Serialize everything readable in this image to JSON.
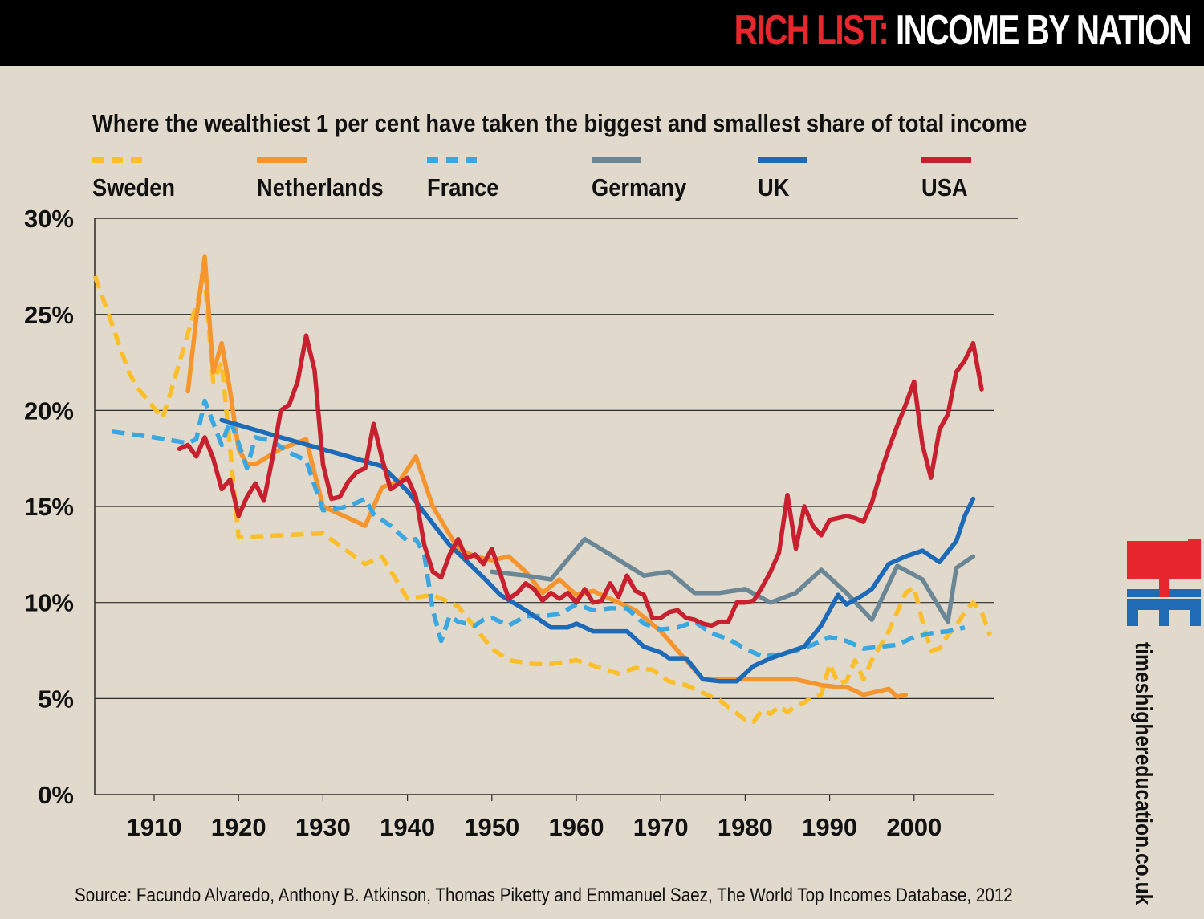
{
  "header": {
    "title_highlight": "RICH LIST:",
    "title_rest": " INCOME BY NATION",
    "highlight_color": "#e8262d"
  },
  "branding": {
    "logo_text": "THE",
    "logo_colors": [
      "#e8262d",
      "#1f6bb5"
    ],
    "site": "timeshighereducation.co.uk"
  },
  "source": "Source: Facundo Alvaredo, Anthony B. Atkinson, Thomas Piketty and Emmanuel Saez, The World Top Incomes Database, 2012",
  "chart_data": {
    "type": "line",
    "title": "Where the wealthiest 1 per cent have taken the biggest and smallest share of total income",
    "xlabel": "",
    "ylabel": "",
    "xlim": [
      1903,
      2009
    ],
    "ylim": [
      0,
      30
    ],
    "x_ticks": [
      "1910",
      "1920",
      "1930",
      "1940",
      "1950",
      "1960",
      "1970",
      "1980",
      "1990",
      "2000"
    ],
    "x_tick_values": [
      1910,
      1920,
      1930,
      1940,
      1950,
      1960,
      1970,
      1980,
      1990,
      2000
    ],
    "y_ticks": [
      "0%",
      "5%",
      "10%",
      "15%",
      "20%",
      "25%",
      "30%"
    ],
    "y_tick_values": [
      0,
      5,
      10,
      15,
      20,
      25,
      30
    ],
    "grid": "horizontal",
    "legend_position": "top",
    "series": [
      {
        "name": "Sweden",
        "color": "#fbbf2c",
        "dashed": true,
        "x": [
          1903,
          1907,
          1908,
          1911,
          1912,
          1915,
          1916,
          1917,
          1918,
          1919,
          1920,
          1925,
          1930,
          1935,
          1937,
          1940,
          1943,
          1945,
          1946,
          1950,
          1952,
          1955,
          1957,
          1960,
          1965,
          1967,
          1969,
          1971,
          1973,
          1975,
          1977,
          1980,
          1981,
          1982,
          1983,
          1984,
          1985,
          1986,
          1987,
          1988,
          1989,
          1990,
          1991,
          1992,
          1993,
          1994,
          1995,
          1997,
          1999,
          2000,
          2001,
          2002,
          2003,
          2004,
          2005,
          2006,
          2007,
          2008,
          2009
        ],
        "y": [
          27,
          22,
          21.2,
          19.6,
          21,
          25.5,
          27,
          21.5,
          22.5,
          18,
          13.4,
          13.5,
          13.6,
          12,
          12.4,
          10.2,
          10.4,
          10,
          9.8,
          7.6,
          7.0,
          6.8,
          6.8,
          7.0,
          6.3,
          6.6,
          6.5,
          5.9,
          5.7,
          5.3,
          4.9,
          3.9,
          3.8,
          4.4,
          4.2,
          4.6,
          4.3,
          4.6,
          4.8,
          5.1,
          5.2,
          6.8,
          5.8,
          5.9,
          7.0,
          6.0,
          7.0,
          8.5,
          10.5,
          10.8,
          9.0,
          7.5,
          7.6,
          8.3,
          8.8,
          9.5,
          10.0,
          9.5,
          8.3
        ]
      },
      {
        "name": "Netherlands",
        "color": "#f6952d",
        "dashed": false,
        "x": [
          1914,
          1915,
          1916,
          1917,
          1918,
          1919,
          1920,
          1921,
          1922,
          1925,
          1928,
          1930,
          1932,
          1935,
          1937,
          1939,
          1941,
          1943,
          1946,
          1948,
          1950,
          1952,
          1954,
          1956,
          1958,
          1960,
          1962,
          1965,
          1967,
          1970,
          1973,
          1975,
          1978,
          1980,
          1983,
          1986,
          1989,
          1991,
          1992,
          1993,
          1994,
          1996,
          1997,
          1998,
          1999
        ],
        "y": [
          21,
          24.8,
          28,
          22,
          23.5,
          21,
          18,
          17.2,
          17.2,
          18,
          18.5,
          15,
          14.6,
          14,
          16,
          16.3,
          17.6,
          15,
          12.8,
          12.4,
          12.2,
          12.4,
          11.6,
          10.5,
          11.2,
          10.4,
          10.6,
          10,
          9.6,
          8.5,
          7,
          6,
          6,
          6,
          6,
          6,
          5.7,
          5.6,
          5.6,
          5.4,
          5.2,
          5.4,
          5.5,
          5.1,
          5.2
        ]
      },
      {
        "name": "France",
        "color": "#3aa7e0",
        "dashed": true,
        "x": [
          1905,
          1910,
          1914,
          1915,
          1916,
          1918,
          1919,
          1920,
          1921,
          1922,
          1924,
          1926,
          1928,
          1930,
          1932,
          1934,
          1935,
          1936,
          1938,
          1940,
          1941,
          1942,
          1943,
          1944,
          1945,
          1946,
          1948,
          1949,
          1950,
          1952,
          1954,
          1956,
          1958,
          1960,
          1962,
          1964,
          1966,
          1968,
          1970,
          1972,
          1974,
          1976,
          1978,
          1980,
          1982,
          1984,
          1986,
          1988,
          1990,
          1992,
          1994,
          1996,
          1998,
          2000,
          2002,
          2004,
          2006
        ],
        "y": [
          18.9,
          18.6,
          18.3,
          18.5,
          20.5,
          18.2,
          19.5,
          18.3,
          17,
          18.6,
          18.4,
          17.8,
          17.4,
          14.8,
          14.9,
          15.2,
          15.4,
          14.6,
          14,
          13.2,
          13.3,
          12.5,
          9.6,
          8.0,
          9.3,
          9.0,
          8.8,
          9.1,
          9.2,
          8.8,
          9.3,
          9.3,
          9.4,
          9.9,
          9.6,
          9.7,
          9.7,
          8.9,
          8.6,
          8.7,
          9.0,
          8.4,
          8.1,
          7.6,
          7.2,
          7.3,
          7.5,
          7.8,
          8.2,
          8.0,
          7.6,
          7.7,
          7.8,
          8.2,
          8.4,
          8.5,
          8.7
        ]
      },
      {
        "name": "Germany",
        "color": "#6b8796",
        "dashed": false,
        "x": [
          1950,
          1954,
          1957,
          1961,
          1964,
          1968,
          1971,
          1974,
          1977,
          1980,
          1983,
          1986,
          1989,
          1992,
          1995,
          1998,
          2001,
          2004,
          2005,
          2007
        ],
        "y": [
          11.6,
          11.4,
          11.2,
          13.3,
          12.5,
          11.4,
          11.6,
          10.5,
          10.5,
          10.7,
          10.0,
          10.5,
          11.7,
          10.5,
          9.1,
          11.9,
          11.2,
          9.0,
          11.8,
          12.4
        ]
      },
      {
        "name": "UK",
        "color": "#1d6ab8",
        "dashed": false,
        "x": [
          1918,
          1925,
          1937,
          1940,
          1945,
          1949,
          1951,
          1954,
          1957,
          1959,
          1960,
          1962,
          1964,
          1966,
          1968,
          1970,
          1971,
          1973,
          1975,
          1977,
          1979,
          1981,
          1983,
          1985,
          1987,
          1989,
          1991,
          1992,
          1994,
          1995,
          1997,
          1999,
          2001,
          2003,
          2005,
          2006,
          2007
        ],
        "y": [
          19.5,
          18.6,
          17.1,
          15.8,
          13.0,
          11.3,
          10.4,
          9.6,
          8.7,
          8.7,
          8.9,
          8.5,
          8.5,
          8.5,
          7.7,
          7.4,
          7.1,
          7.1,
          6.0,
          5.9,
          5.9,
          6.7,
          7.1,
          7.4,
          7.7,
          8.8,
          10.4,
          9.9,
          10.4,
          10.7,
          12.0,
          12.4,
          12.7,
          12.1,
          13.2,
          14.5,
          15.4
        ]
      },
      {
        "name": "USA",
        "color": "#c8202f",
        "dashed": false,
        "x": [
          1913,
          1914,
          1915,
          1916,
          1917,
          1918,
          1919,
          1920,
          1921,
          1922,
          1923,
          1924,
          1925,
          1926,
          1927,
          1928,
          1929,
          1930,
          1931,
          1932,
          1933,
          1934,
          1935,
          1936,
          1937,
          1938,
          1939,
          1940,
          1941,
          1942,
          1943,
          1944,
          1945,
          1946,
          1947,
          1948,
          1949,
          1950,
          1951,
          1952,
          1953,
          1954,
          1955,
          1956,
          1957,
          1958,
          1959,
          1960,
          1961,
          1962,
          1963,
          1964,
          1965,
          1966,
          1967,
          1968,
          1969,
          1970,
          1971,
          1972,
          1973,
          1974,
          1975,
          1976,
          1977,
          1978,
          1979,
          1980,
          1981,
          1982,
          1983,
          1984,
          1985,
          1986,
          1987,
          1988,
          1989,
          1990,
          1991,
          1992,
          1993,
          1994,
          1995,
          1996,
          1997,
          1998,
          1999,
          2000,
          2001,
          2002,
          2003,
          2004,
          2005,
          2006,
          2007,
          2008
        ],
        "y": [
          18.0,
          18.2,
          17.6,
          18.6,
          17.5,
          15.9,
          16.4,
          14.5,
          15.5,
          16.2,
          15.3,
          17.5,
          20.0,
          20.3,
          21.5,
          23.9,
          22.1,
          17.2,
          15.4,
          15.5,
          16.3,
          16.8,
          17.0,
          19.3,
          17.5,
          15.9,
          16.2,
          16.5,
          15.5,
          13.0,
          11.6,
          11.3,
          12.5,
          13.3,
          12.3,
          12.5,
          12.0,
          12.8,
          11.5,
          10.2,
          10.5,
          11.0,
          10.7,
          10.1,
          10.5,
          10.2,
          10.5,
          10.0,
          10.7,
          10.0,
          10.1,
          11.0,
          10.3,
          11.4,
          10.6,
          10.4,
          9.2,
          9.2,
          9.5,
          9.6,
          9.2,
          9.1,
          8.9,
          8.8,
          9.0,
          9.0,
          10.0,
          10.0,
          10.1,
          10.8,
          11.6,
          12.6,
          15.6,
          12.8,
          15.0,
          14.0,
          13.5,
          14.3,
          14.4,
          14.5,
          14.4,
          14.2,
          15.2,
          16.7,
          18.0,
          19.2,
          20.3,
          21.5,
          18.2,
          16.5,
          19.0,
          19.8,
          22.0,
          22.6,
          23.5,
          21.1
        ]
      }
    ]
  }
}
